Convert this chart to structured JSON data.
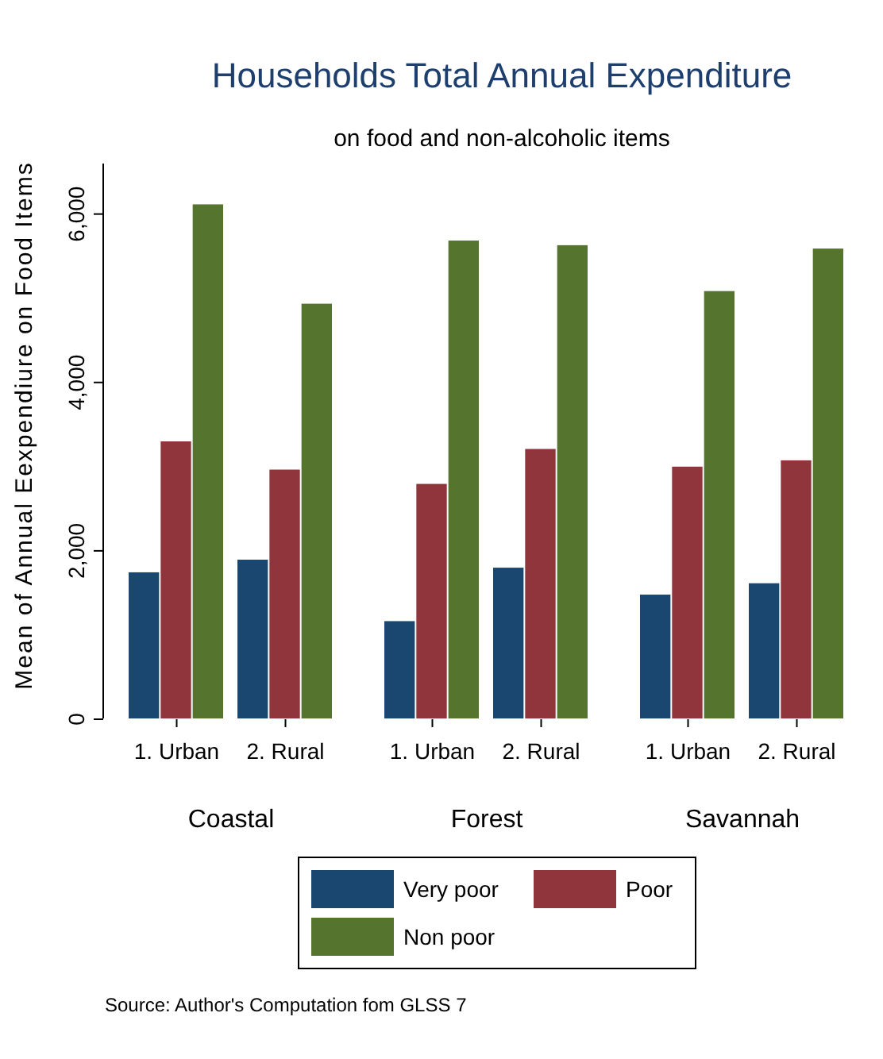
{
  "chart_data": {
    "type": "bar",
    "title": "Households Total Annual Expenditure",
    "subtitle": "on food and non-alcoholic items",
    "ylabel": "Mean of Annual Eexpendiure on Food Items",
    "categories": [
      "1. Urban",
      "2. Rural",
      "1. Urban",
      "2. Rural",
      "1. Urban",
      "2. Rural"
    ],
    "series": [
      {
        "name": "Very poor",
        "color": "#1a476f",
        "values": [
          1745,
          1895,
          1165,
          1800,
          1480,
          1615
        ]
      },
      {
        "name": "Poor",
        "color": "#90353b",
        "values": [
          3300,
          2965,
          2795,
          3210,
          3000,
          3075
        ]
      },
      {
        "name": "Non poor",
        "color": "#55752f",
        "values": [
          6115,
          4935,
          5685,
          5630,
          5085,
          5590
        ]
      }
    ],
    "ylim": [
      0,
      6600
    ],
    "yticks": [
      {
        "value": 0,
        "label": "0"
      },
      {
        "value": 2000,
        "label": "2,000"
      },
      {
        "value": 4000,
        "label": "4,000"
      },
      {
        "value": 6000,
        "label": "6,000"
      }
    ],
    "grid": false,
    "legend": "bottom",
    "annotations": [
      "Coastal",
      "Forest",
      "Savannah",
      "Source: Author's Computation fom GLSS 7"
    ]
  }
}
